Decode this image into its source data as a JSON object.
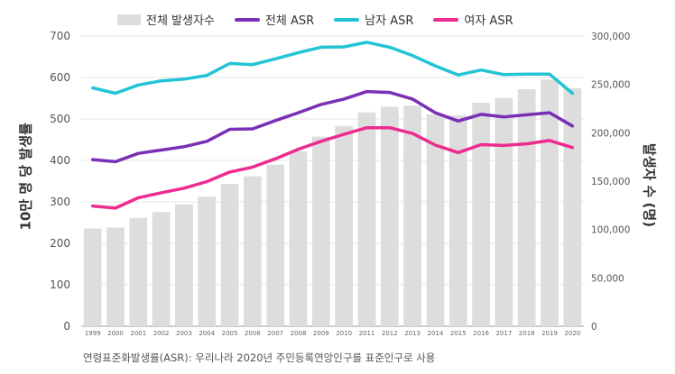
{
  "chart_data": {
    "type": "bar",
    "categories": [
      "1999",
      "2000",
      "2001",
      "2002",
      "2003",
      "2004",
      "2005",
      "2006",
      "2007",
      "2008",
      "2009",
      "2010",
      "2011",
      "2012",
      "2013",
      "2014",
      "2015",
      "2016",
      "2017",
      "2018",
      "2019",
      "2020"
    ],
    "bar_series": {
      "name": "전체 발생자수",
      "axis": "right",
      "values": [
        101000,
        102000,
        112000,
        118000,
        126000,
        134000,
        147000,
        155000,
        167000,
        181000,
        196000,
        207000,
        221000,
        227000,
        228000,
        219000,
        218000,
        231000,
        236000,
        245000,
        255000,
        246000
      ],
      "color": "#dddddd"
    },
    "line_series": [
      {
        "name": "전체 ASR",
        "color": "#7a2fb5",
        "values": [
          402,
          397,
          417,
          425,
          433,
          446,
          475,
          476,
          496,
          515,
          535,
          548,
          566,
          564,
          548,
          515,
          495,
          511,
          505,
          510,
          515,
          483
        ]
      },
      {
        "name": "남자 ASR",
        "color": "#22c4d6",
        "values": [
          575,
          562,
          582,
          592,
          596,
          605,
          634,
          631,
          645,
          660,
          673,
          674,
          685,
          673,
          653,
          628,
          606,
          618,
          607,
          608,
          608,
          562
        ]
      },
      {
        "name": "여자 ASR",
        "color": "#ee2b8f",
        "values": [
          290,
          285,
          310,
          322,
          333,
          349,
          372,
          384,
          404,
          427,
          446,
          463,
          479,
          479,
          465,
          437,
          419,
          438,
          436,
          440,
          448,
          431
        ]
      }
    ],
    "ylabel_left": "10만 명 당 발생률",
    "ylabel_right": "발생자 수 (명)",
    "ylim_left": [
      0,
      700
    ],
    "ylim_right": [
      0,
      300000
    ],
    "yticks_left": [
      "0",
      "100",
      "200",
      "300",
      "400",
      "500",
      "600",
      "700"
    ],
    "yticks_right": [
      "0",
      "50,000",
      "100,000",
      "150,000",
      "200,000",
      "250,000",
      "300,000"
    ],
    "legend_position": "top-center",
    "grid": true
  },
  "footnote": "연령표준화발생률(ASR):  우리나라  2020년  주민등록연앙인구를  표준인구로  사용"
}
